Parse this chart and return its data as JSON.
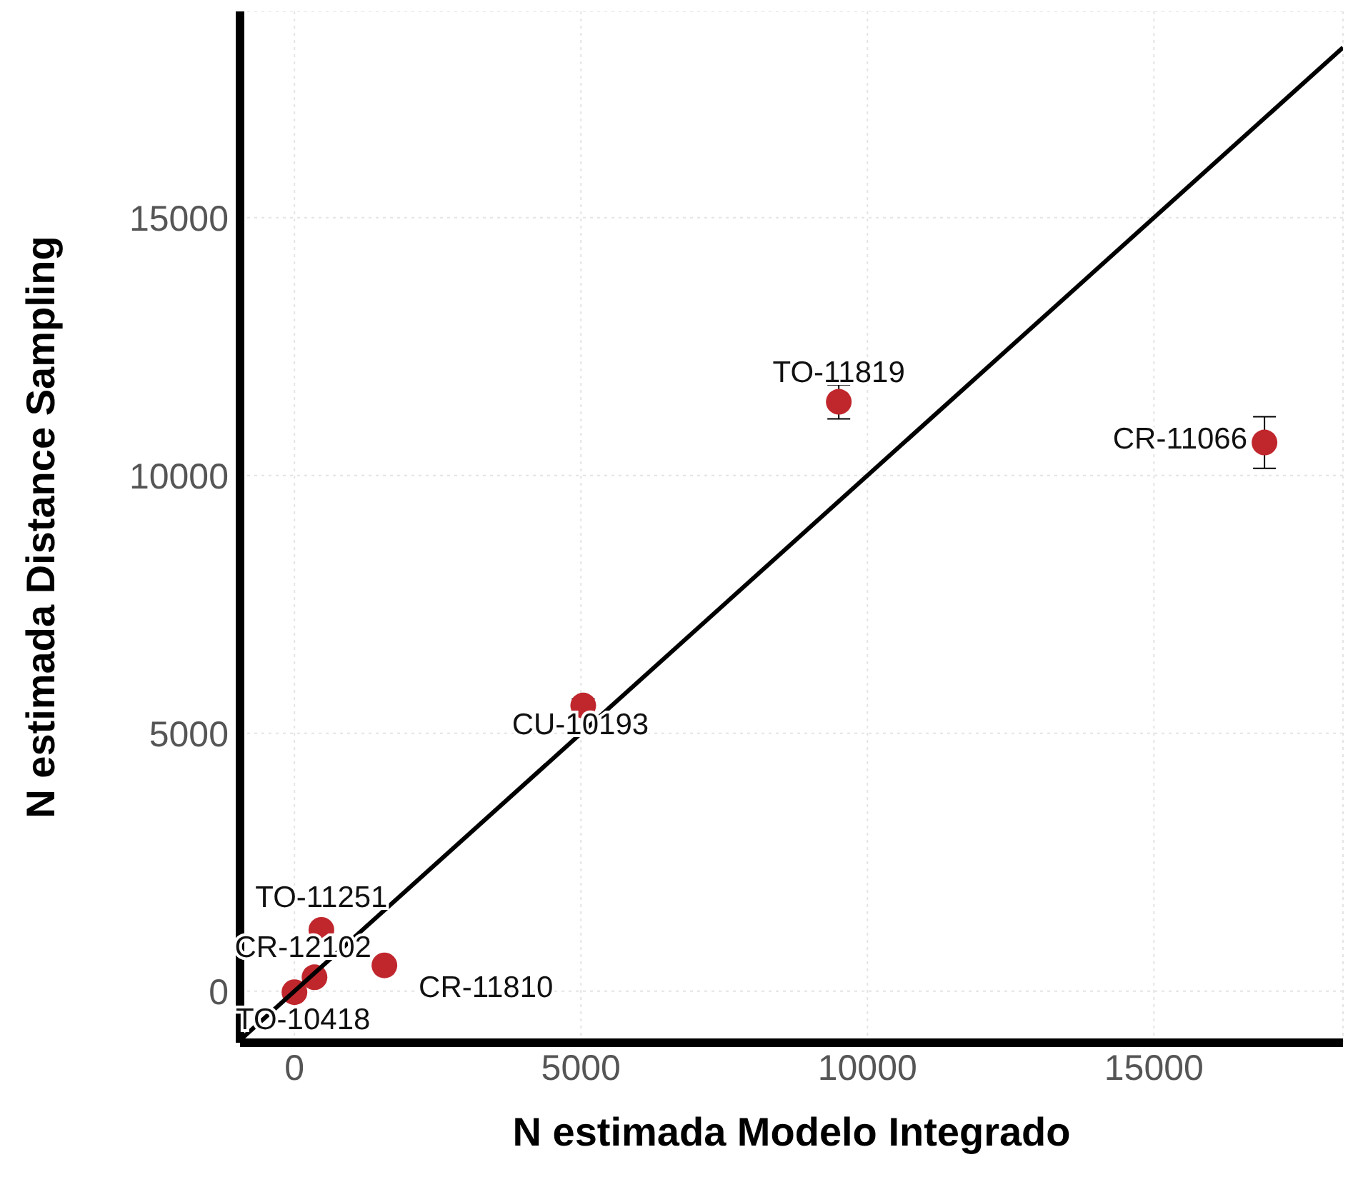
{
  "chart_data": {
    "type": "scatter",
    "xlabel": "N estimada Modelo Integrado",
    "ylabel": "N estimada Distance Sampling",
    "xlim": [
      -950,
      18300
    ],
    "ylim": [
      -1000,
      19000
    ],
    "xticks": [
      0,
      5000,
      10000,
      15000
    ],
    "yticks": [
      0,
      5000,
      10000,
      15000
    ],
    "grid": true,
    "legend": false,
    "marker": "circle",
    "series": [
      {
        "color": "#c0272d",
        "x": [
          9500,
          16930,
          5040,
          470,
          350,
          1570,
          0
        ],
        "values": [
          11430,
          10640,
          5540,
          1190,
          270,
          500,
          -20
        ],
        "errors": [
          330,
          500,
          130,
          null,
          null,
          null,
          null
        ]
      },
      {
        "type": "line",
        "color": "#000000",
        "x": [
          -900,
          18300
        ],
        "values": [
          -900,
          18300
        ],
        "marker": "none"
      }
    ],
    "annotations": [
      {
        "text": "TO-11819",
        "x": 9500,
        "y": 11430
      },
      {
        "text": "CR-11066",
        "x": 16930,
        "y": 10640
      },
      {
        "text": "CU-10193",
        "x": 5040,
        "y": 5540
      },
      {
        "text": "TO-11251",
        "x": 470,
        "y": 1190
      },
      {
        "text": "CR-12102",
        "x": 350,
        "y": 270
      },
      {
        "text": "CR-11810",
        "x": 1570,
        "y": 500
      },
      {
        "text": "TO-10418",
        "x": 0,
        "y": -20
      }
    ]
  }
}
